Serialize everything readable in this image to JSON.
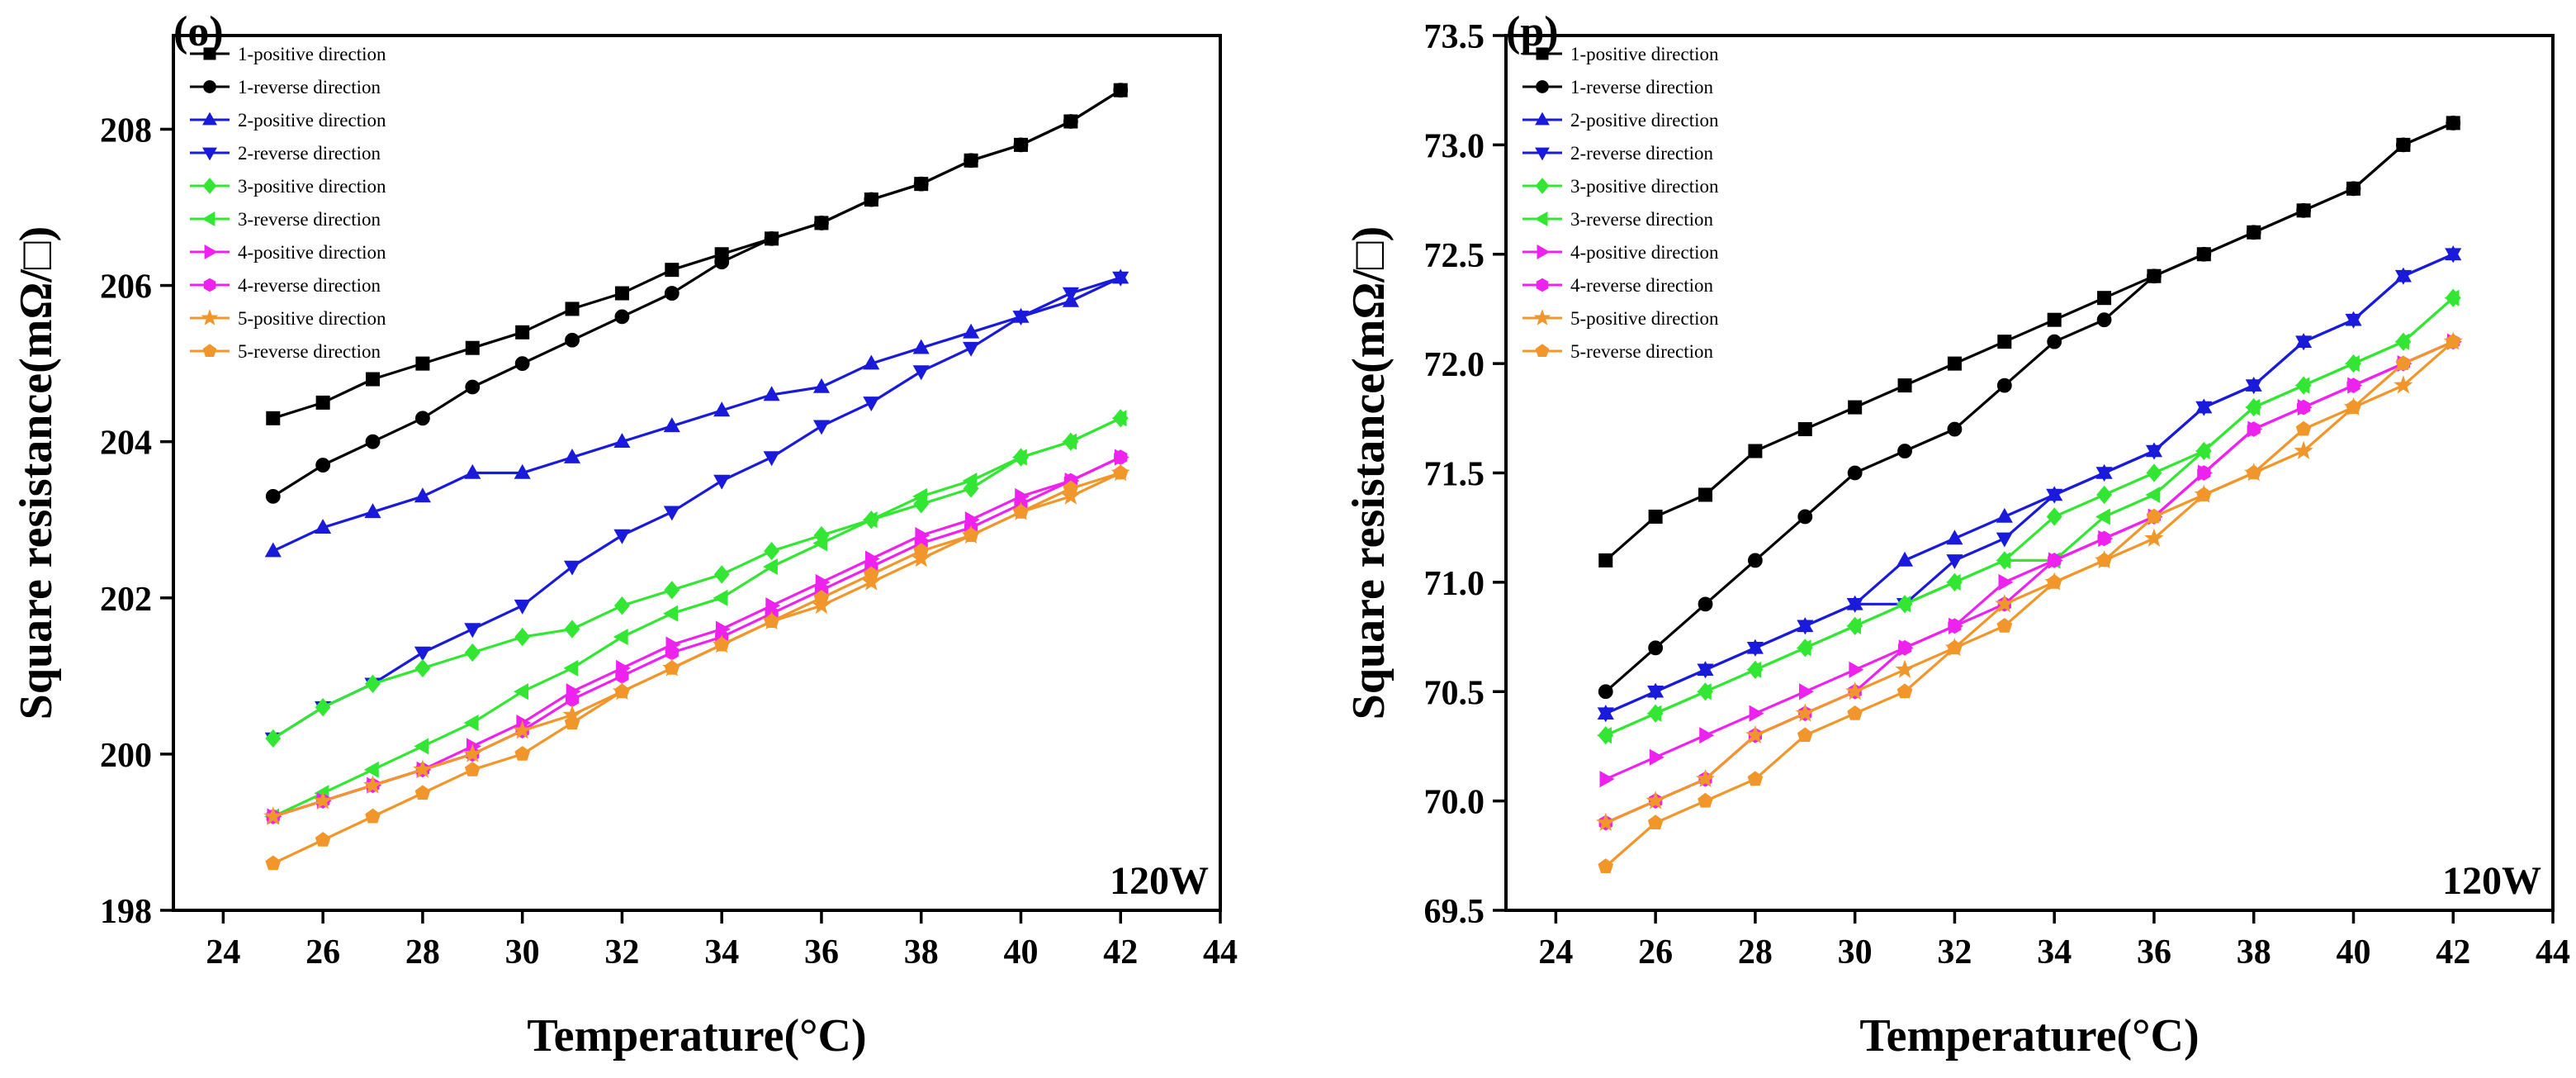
{
  "chart_data": [
    {
      "type": "line",
      "panel_label": "(o)",
      "annotation": "120W",
      "xlabel": "Temperature(°C)",
      "ylabel": "Square resistance(mΩ/□)",
      "xlim": [
        23,
        44
      ],
      "ylim": [
        198,
        209.2
      ],
      "xticks": [
        24,
        26,
        28,
        30,
        32,
        34,
        36,
        38,
        40,
        42,
        44
      ],
      "yticks": [
        198,
        200,
        202,
        204,
        206,
        208
      ],
      "x": [
        25,
        26,
        27,
        28,
        29,
        30,
        31,
        32,
        33,
        34,
        35,
        36,
        37,
        38,
        39,
        40,
        41,
        42
      ],
      "series": [
        {
          "name": "1-positive direction",
          "color": "#000000",
          "marker": "square",
          "values": [
            204.3,
            204.5,
            204.8,
            205.0,
            205.2,
            205.4,
            205.7,
            205.9,
            206.2,
            206.4,
            206.6,
            206.8,
            207.1,
            207.3,
            207.6,
            207.8,
            208.1,
            208.5
          ]
        },
        {
          "name": "1-reverse direction",
          "color": "#000000",
          "marker": "circle",
          "values": [
            203.3,
            203.7,
            204.0,
            204.3,
            204.7,
            205.0,
            205.3,
            205.6,
            205.9,
            206.3,
            206.6,
            206.8,
            207.1,
            207.3,
            207.6,
            207.8,
            208.1,
            208.5
          ]
        },
        {
          "name": "2-positive direction",
          "color": "#1a1adb",
          "marker": "triangle-up",
          "values": [
            202.6,
            202.9,
            203.1,
            203.3,
            203.6,
            203.6,
            203.8,
            204.0,
            204.2,
            204.4,
            204.6,
            204.7,
            205.0,
            205.2,
            205.4,
            205.6,
            205.8,
            206.1
          ]
        },
        {
          "name": "2-reverse direction",
          "color": "#1a1adb",
          "marker": "triangle-down",
          "values": [
            200.2,
            200.6,
            200.9,
            201.3,
            201.6,
            201.9,
            202.4,
            202.8,
            203.1,
            203.5,
            203.8,
            204.2,
            204.5,
            204.9,
            205.2,
            205.6,
            205.9,
            206.1
          ]
        },
        {
          "name": "3-positive direction",
          "color": "#33e633",
          "marker": "diamond",
          "values": [
            200.2,
            200.6,
            200.9,
            201.1,
            201.3,
            201.5,
            201.6,
            201.9,
            202.1,
            202.3,
            202.6,
            202.8,
            203.0,
            203.2,
            203.4,
            203.8,
            204.0,
            204.3
          ]
        },
        {
          "name": "3-reverse direction",
          "color": "#33e633",
          "marker": "triangle-left",
          "values": [
            199.2,
            199.5,
            199.8,
            200.1,
            200.4,
            200.8,
            201.1,
            201.5,
            201.8,
            202.0,
            202.4,
            202.7,
            203.0,
            203.3,
            203.5,
            203.8,
            204.0,
            204.3
          ]
        },
        {
          "name": "4-positive direction",
          "color": "#ee22ee",
          "marker": "triangle-right",
          "values": [
            199.2,
            199.4,
            199.6,
            199.8,
            200.1,
            200.4,
            200.8,
            201.1,
            201.4,
            201.6,
            201.9,
            202.2,
            202.5,
            202.8,
            203.0,
            203.3,
            203.5,
            203.8
          ]
        },
        {
          "name": "4-reverse direction",
          "color": "#ee22ee",
          "marker": "hexagon",
          "values": [
            199.2,
            199.4,
            199.6,
            199.8,
            200.0,
            200.3,
            200.7,
            201.0,
            201.3,
            201.5,
            201.8,
            202.1,
            202.4,
            202.7,
            202.9,
            203.2,
            203.5,
            203.8
          ]
        },
        {
          "name": "5-positive direction",
          "color": "#f0962a",
          "marker": "star",
          "values": [
            199.2,
            199.4,
            199.6,
            199.8,
            200.0,
            200.3,
            200.5,
            200.8,
            201.1,
            201.4,
            201.7,
            201.9,
            202.2,
            202.5,
            202.8,
            203.1,
            203.3,
            203.6
          ]
        },
        {
          "name": "5-reverse direction",
          "color": "#f0962a",
          "marker": "pentagon",
          "values": [
            198.6,
            198.9,
            199.2,
            199.5,
            199.8,
            200.0,
            200.4,
            200.8,
            201.1,
            201.4,
            201.7,
            202.0,
            202.3,
            202.6,
            202.8,
            203.1,
            203.4,
            203.6
          ]
        }
      ]
    },
    {
      "type": "line",
      "panel_label": "(p)",
      "annotation": "120W",
      "xlabel": "Temperature(°C)",
      "ylabel": "Square resistance(mΩ/□)",
      "xlim": [
        23,
        44
      ],
      "ylim": [
        69.5,
        73.5
      ],
      "xticks": [
        24,
        26,
        28,
        30,
        32,
        34,
        36,
        38,
        40,
        42,
        44
      ],
      "yticks": [
        "69.5",
        "70.0",
        "70.5",
        "71.0",
        "71.5",
        "72.0",
        "72.5",
        "73.0",
        "73.5"
      ],
      "x": [
        25,
        26,
        27,
        28,
        29,
        30,
        31,
        32,
        33,
        34,
        35,
        36,
        37,
        38,
        39,
        40,
        41,
        42
      ],
      "series": [
        {
          "name": "1-positive direction",
          "color": "#000000",
          "marker": "square",
          "values": [
            71.1,
            71.3,
            71.4,
            71.6,
            71.7,
            71.8,
            71.9,
            72.0,
            72.1,
            72.2,
            72.3,
            72.4,
            72.5,
            72.6,
            72.7,
            72.8,
            73.0,
            73.1
          ]
        },
        {
          "name": "1-reverse direction",
          "color": "#000000",
          "marker": "circle",
          "values": [
            70.5,
            70.7,
            70.9,
            71.1,
            71.3,
            71.5,
            71.6,
            71.7,
            71.9,
            72.1,
            72.2,
            72.4,
            72.5,
            72.6,
            72.7,
            72.8,
            73.0,
            73.1
          ]
        },
        {
          "name": "2-positive direction",
          "color": "#1a1adb",
          "marker": "triangle-up",
          "values": [
            70.4,
            70.5,
            70.6,
            70.7,
            70.8,
            70.9,
            71.1,
            71.2,
            71.3,
            71.4,
            71.5,
            71.6,
            71.8,
            71.9,
            72.1,
            72.2,
            72.4,
            72.5
          ]
        },
        {
          "name": "2-reverse direction",
          "color": "#1a1adb",
          "marker": "triangle-down",
          "values": [
            70.4,
            70.5,
            70.6,
            70.7,
            70.8,
            70.9,
            70.9,
            71.1,
            71.2,
            71.4,
            71.5,
            71.6,
            71.8,
            71.9,
            72.1,
            72.2,
            72.4,
            72.5
          ]
        },
        {
          "name": "3-positive direction",
          "color": "#33e633",
          "marker": "diamond",
          "values": [
            70.3,
            70.4,
            70.5,
            70.6,
            70.7,
            70.8,
            70.9,
            71.0,
            71.1,
            71.3,
            71.4,
            71.5,
            71.6,
            71.8,
            71.9,
            72.0,
            72.1,
            72.3
          ]
        },
        {
          "name": "3-reverse direction",
          "color": "#33e633",
          "marker": "triangle-left",
          "values": [
            70.3,
            70.4,
            70.5,
            70.6,
            70.7,
            70.8,
            70.9,
            71.0,
            71.1,
            71.1,
            71.3,
            71.4,
            71.6,
            71.8,
            71.9,
            72.0,
            72.1,
            72.3
          ]
        },
        {
          "name": "4-positive direction",
          "color": "#ee22ee",
          "marker": "triangle-right",
          "values": [
            70.1,
            70.2,
            70.3,
            70.4,
            70.5,
            70.6,
            70.7,
            70.8,
            71.0,
            71.1,
            71.2,
            71.3,
            71.5,
            71.7,
            71.8,
            71.9,
            72.0,
            72.1
          ]
        },
        {
          "name": "4-reverse direction",
          "color": "#ee22ee",
          "marker": "hexagon",
          "values": [
            69.9,
            70.0,
            70.1,
            70.3,
            70.4,
            70.5,
            70.7,
            70.8,
            70.9,
            71.1,
            71.2,
            71.3,
            71.5,
            71.7,
            71.8,
            71.9,
            72.0,
            72.1
          ]
        },
        {
          "name": "5-positive direction",
          "color": "#f0962a",
          "marker": "star",
          "values": [
            69.9,
            70.0,
            70.1,
            70.3,
            70.4,
            70.5,
            70.6,
            70.7,
            70.9,
            71.0,
            71.1,
            71.2,
            71.4,
            71.5,
            71.6,
            71.8,
            71.9,
            72.1
          ]
        },
        {
          "name": "5-reverse direction",
          "color": "#f0962a",
          "marker": "pentagon",
          "values": [
            69.7,
            69.9,
            70.0,
            70.1,
            70.3,
            70.4,
            70.5,
            70.7,
            70.8,
            71.0,
            71.1,
            71.3,
            71.4,
            71.5,
            71.7,
            71.8,
            72.0,
            72.1
          ]
        }
      ]
    }
  ]
}
